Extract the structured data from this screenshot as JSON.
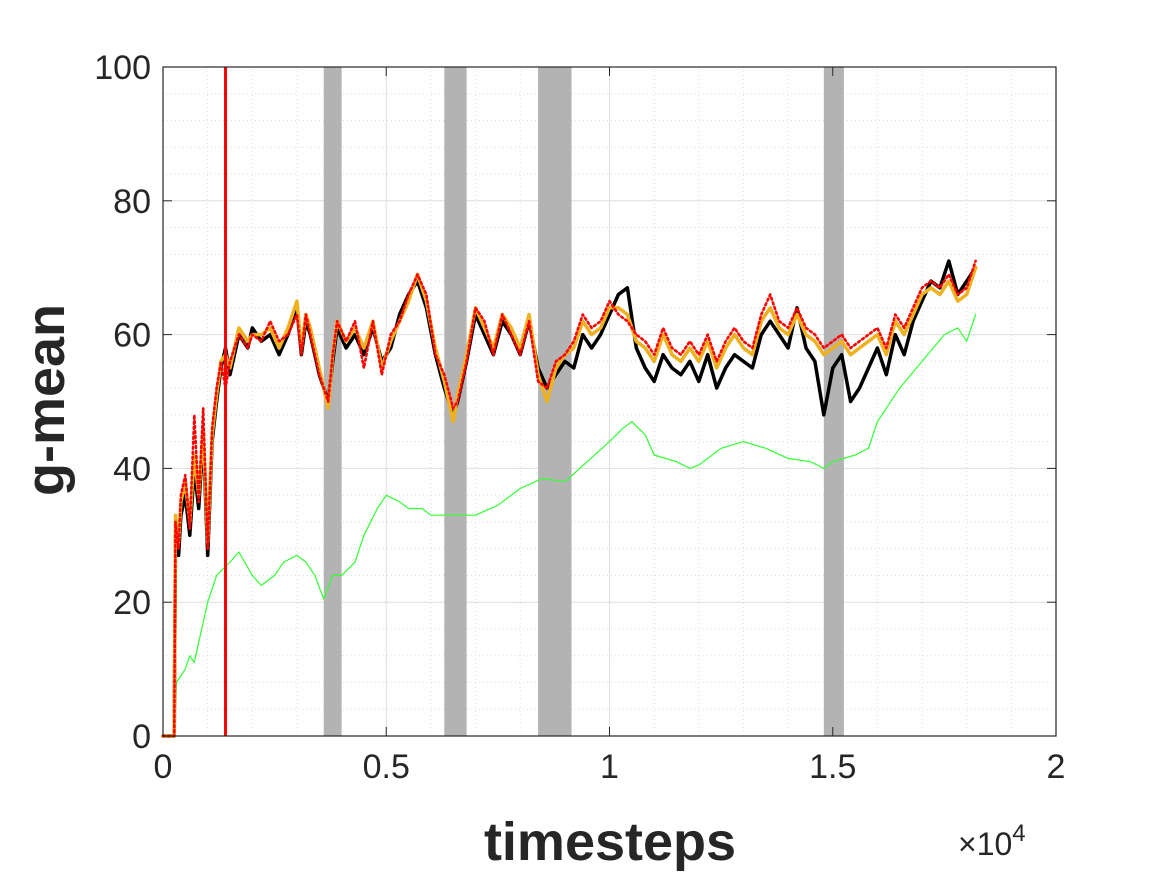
{
  "chart_data": {
    "type": "line",
    "title": "",
    "xlabel": "timesteps",
    "ylabel": "g-mean",
    "x_exponent_label": "×10",
    "x_exponent_power": "4",
    "x_scale_exponent": 4,
    "xlim": [
      0,
      2
    ],
    "ylim": [
      0,
      100
    ],
    "xticks": [
      0,
      0.5,
      1,
      1.5,
      2
    ],
    "xtick_labels": [
      "0",
      "0.5",
      "1",
      "1.5",
      "2"
    ],
    "yticks": [
      0,
      20,
      40,
      60,
      80,
      100
    ],
    "ytick_labels": [
      "0",
      "20",
      "40",
      "60",
      "80",
      "100"
    ],
    "grid": true,
    "minor_grid": true,
    "box": true,
    "vertical_line": {
      "x": 0.14,
      "color": "#ff0000"
    },
    "shaded_bands": [
      {
        "x0": 0.36,
        "x1": 0.4
      },
      {
        "x0": 0.63,
        "x1": 0.68
      },
      {
        "x0": 0.84,
        "x1": 0.915
      },
      {
        "x0": 1.48,
        "x1": 1.525
      }
    ],
    "band_color": "#b3b3b3",
    "series": [
      {
        "color": "#33ff33",
        "width": 1.2,
        "dash": "",
        "x": [
          0,
          0.025,
          0.03,
          0.05,
          0.06,
          0.07,
          0.08,
          0.1,
          0.12,
          0.15,
          0.17,
          0.2,
          0.22,
          0.25,
          0.27,
          0.3,
          0.32,
          0.34,
          0.36,
          0.38,
          0.4,
          0.43,
          0.45,
          0.48,
          0.5,
          0.53,
          0.55,
          0.58,
          0.6,
          0.65,
          0.7,
          0.75,
          0.8,
          0.85,
          0.9,
          0.95,
          1.0,
          1.03,
          1.05,
          1.08,
          1.1,
          1.15,
          1.18,
          1.2,
          1.25,
          1.3,
          1.35,
          1.4,
          1.45,
          1.48,
          1.5,
          1.55,
          1.58,
          1.6,
          1.65,
          1.7,
          1.75,
          1.78,
          1.8,
          1.82
        ],
        "y": [
          0,
          0,
          8,
          10,
          12,
          11,
          14,
          20,
          24,
          26,
          27.5,
          24,
          22.5,
          24,
          26,
          27,
          26,
          24,
          20.5,
          24,
          24,
          26,
          30,
          34,
          36,
          35,
          34,
          34,
          33,
          33,
          33,
          34.5,
          37,
          38.5,
          38,
          41,
          44,
          46,
          47,
          45,
          42,
          41,
          40,
          40.5,
          43,
          44,
          43,
          41.5,
          41,
          40,
          41,
          42,
          43,
          47,
          52,
          56,
          60,
          61,
          59,
          63
        ]
      },
      {
        "color": "#000000",
        "width": 3.5,
        "dash": "",
        "x": [
          0,
          0.025,
          0.028,
          0.035,
          0.04,
          0.05,
          0.06,
          0.07,
          0.08,
          0.09,
          0.1,
          0.11,
          0.12,
          0.13,
          0.14,
          0.15,
          0.17,
          0.19,
          0.2,
          0.22,
          0.24,
          0.26,
          0.28,
          0.3,
          0.31,
          0.32,
          0.33,
          0.35,
          0.37,
          0.38,
          0.39,
          0.41,
          0.43,
          0.45,
          0.47,
          0.49,
          0.51,
          0.53,
          0.55,
          0.57,
          0.59,
          0.61,
          0.63,
          0.65,
          0.66,
          0.68,
          0.7,
          0.72,
          0.74,
          0.76,
          0.78,
          0.8,
          0.82,
          0.84,
          0.86,
          0.88,
          0.9,
          0.92,
          0.94,
          0.96,
          0.98,
          1.0,
          1.02,
          1.04,
          1.06,
          1.08,
          1.1,
          1.12,
          1.14,
          1.16,
          1.18,
          1.2,
          1.22,
          1.24,
          1.26,
          1.28,
          1.3,
          1.32,
          1.34,
          1.36,
          1.38,
          1.4,
          1.42,
          1.44,
          1.46,
          1.48,
          1.5,
          1.52,
          1.54,
          1.56,
          1.58,
          1.6,
          1.62,
          1.64,
          1.66,
          1.68,
          1.7,
          1.72,
          1.74,
          1.76,
          1.78,
          1.8,
          1.82
        ],
        "y": [
          0,
          0,
          30,
          27,
          33,
          36,
          30,
          40,
          34,
          45,
          27,
          44,
          50,
          55,
          58,
          54,
          60,
          58,
          61,
          59,
          60,
          57,
          60,
          64,
          57,
          62,
          60,
          54,
          50,
          56,
          61,
          58,
          60,
          57,
          61,
          56,
          58,
          63,
          66,
          68,
          64,
          57,
          52,
          48,
          50,
          56,
          63,
          60,
          57,
          62,
          60,
          57,
          62,
          55,
          52,
          54,
          56,
          55,
          60,
          58,
          60,
          63,
          66,
          67,
          58,
          55,
          53,
          57,
          55,
          54,
          56,
          53,
          57,
          52,
          55,
          57,
          56,
          55,
          60,
          62,
          60,
          58,
          64,
          58,
          56,
          48,
          55,
          57,
          50,
          52,
          55,
          58,
          54,
          60,
          57,
          62,
          65,
          68,
          67,
          71,
          66,
          68,
          70
        ]
      },
      {
        "color": "#eeb220",
        "width": 3.5,
        "dash": "",
        "x": [
          0,
          0.025,
          0.028,
          0.035,
          0.04,
          0.05,
          0.06,
          0.07,
          0.08,
          0.09,
          0.1,
          0.11,
          0.12,
          0.13,
          0.14,
          0.15,
          0.17,
          0.19,
          0.2,
          0.22,
          0.24,
          0.26,
          0.28,
          0.3,
          0.31,
          0.32,
          0.33,
          0.35,
          0.37,
          0.38,
          0.39,
          0.41,
          0.43,
          0.45,
          0.47,
          0.49,
          0.51,
          0.53,
          0.55,
          0.57,
          0.59,
          0.61,
          0.63,
          0.65,
          0.66,
          0.68,
          0.7,
          0.72,
          0.74,
          0.76,
          0.78,
          0.8,
          0.82,
          0.84,
          0.86,
          0.88,
          0.9,
          0.92,
          0.94,
          0.96,
          0.98,
          1.0,
          1.02,
          1.04,
          1.06,
          1.08,
          1.1,
          1.12,
          1.14,
          1.16,
          1.18,
          1.2,
          1.22,
          1.24,
          1.26,
          1.28,
          1.3,
          1.32,
          1.34,
          1.36,
          1.38,
          1.4,
          1.42,
          1.44,
          1.46,
          1.48,
          1.5,
          1.52,
          1.54,
          1.56,
          1.58,
          1.6,
          1.62,
          1.64,
          1.66,
          1.68,
          1.7,
          1.72,
          1.74,
          1.76,
          1.78,
          1.8,
          1.82
        ],
        "y": [
          0,
          0,
          33,
          29,
          35,
          38,
          32,
          42,
          36,
          46,
          29,
          45,
          51,
          56,
          57,
          55,
          61,
          59,
          60,
          60,
          61,
          58,
          61,
          65,
          58,
          63,
          61,
          55,
          49,
          57,
          62,
          59,
          61,
          58,
          62,
          55,
          59,
          62,
          65,
          69,
          65,
          58,
          53,
          47,
          51,
          57,
          64,
          61,
          58,
          63,
          61,
          58,
          63,
          54,
          50,
          55,
          57,
          58,
          62,
          60,
          61,
          64,
          64,
          63,
          59,
          58,
          56,
          60,
          57,
          56,
          58,
          56,
          59,
          55,
          58,
          60,
          58,
          57,
          62,
          64,
          61,
          60,
          63,
          60,
          59,
          57,
          58,
          59,
          57,
          58,
          59,
          60,
          57,
          62,
          60,
          63,
          66,
          67,
          66,
          68,
          65,
          66,
          70
        ]
      },
      {
        "color": "#ff0000",
        "width": 2.6,
        "dash": "2,3",
        "x": [
          0,
          0.025,
          0.028,
          0.035,
          0.04,
          0.05,
          0.06,
          0.07,
          0.08,
          0.09,
          0.1,
          0.11,
          0.12,
          0.13,
          0.14,
          0.15,
          0.17,
          0.19,
          0.2,
          0.22,
          0.24,
          0.26,
          0.28,
          0.3,
          0.31,
          0.32,
          0.33,
          0.35,
          0.37,
          0.38,
          0.39,
          0.41,
          0.43,
          0.45,
          0.47,
          0.49,
          0.51,
          0.53,
          0.55,
          0.57,
          0.59,
          0.61,
          0.63,
          0.65,
          0.66,
          0.68,
          0.7,
          0.72,
          0.74,
          0.76,
          0.78,
          0.8,
          0.82,
          0.84,
          0.86,
          0.88,
          0.9,
          0.92,
          0.94,
          0.96,
          0.98,
          1.0,
          1.02,
          1.04,
          1.06,
          1.08,
          1.1,
          1.12,
          1.14,
          1.16,
          1.18,
          1.2,
          1.22,
          1.24,
          1.26,
          1.28,
          1.3,
          1.32,
          1.34,
          1.36,
          1.38,
          1.4,
          1.42,
          1.44,
          1.46,
          1.48,
          1.5,
          1.52,
          1.54,
          1.56,
          1.58,
          1.6,
          1.62,
          1.64,
          1.66,
          1.68,
          1.7,
          1.72,
          1.74,
          1.76,
          1.78,
          1.8,
          1.82
        ],
        "y": [
          0,
          0,
          32,
          28,
          36,
          39,
          31,
          48,
          35,
          49,
          28,
          46,
          52,
          56,
          52,
          56,
          60,
          58,
          60,
          59,
          62,
          59,
          60,
          63,
          57,
          63,
          60,
          54,
          50,
          57,
          62,
          59,
          62,
          55,
          62,
          54,
          60,
          62,
          66,
          69,
          66,
          57,
          54,
          49,
          50,
          56,
          64,
          62,
          57,
          63,
          60,
          57,
          62,
          53,
          52,
          56,
          57,
          59,
          63,
          61,
          62,
          65,
          63,
          62,
          60,
          59,
          57,
          61,
          58,
          57,
          59,
          57,
          60,
          56,
          59,
          61,
          59,
          58,
          63,
          66,
          62,
          61,
          64,
          61,
          60,
          58,
          59,
          60,
          58,
          59,
          60,
          61,
          58,
          63,
          61,
          64,
          67,
          68,
          67,
          69,
          66,
          67,
          71
        ]
      }
    ]
  }
}
